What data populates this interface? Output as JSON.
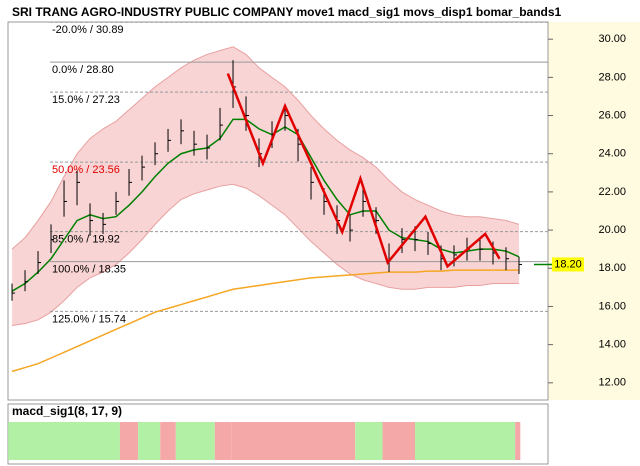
{
  "chart_data": {
    "type": "ohlc",
    "title": "SRI TRANG AGRO-INDUSTRY PUBLIC COMPANY move1 macd_sig1 movs_disp1 bomar_bands1",
    "xlim": [
      -0.31,
      41.23
    ],
    "ylim": [
      11.1,
      30.9
    ],
    "yticks": [
      {
        "value": 12,
        "label": "12.00"
      },
      {
        "value": 14,
        "label": "14.00"
      },
      {
        "value": 16,
        "label": "16.00"
      },
      {
        "value": 18,
        "label": "18.00"
      },
      {
        "value": 20,
        "label": "20.00"
      },
      {
        "value": 22,
        "label": "22.00"
      },
      {
        "value": 24,
        "label": "24.00"
      },
      {
        "value": 26,
        "label": "26.00"
      },
      {
        "value": 28,
        "label": "28.00"
      },
      {
        "value": 30,
        "label": "30.00"
      }
    ],
    "x": [
      0,
      1,
      2,
      3,
      4,
      5,
      6,
      7,
      8,
      9,
      10,
      11,
      12,
      13,
      14,
      15,
      16,
      17,
      18,
      19,
      20,
      21,
      22,
      23,
      24,
      25,
      26,
      27,
      28,
      29,
      30,
      31,
      32,
      33,
      34,
      35,
      36,
      37,
      38,
      39
    ],
    "high": [
      17.2,
      17.9,
      18.9,
      20.3,
      22.6,
      23.1,
      21.4,
      20.9,
      22.0,
      23.2,
      23.9,
      24.6,
      25.3,
      25.8,
      25.2,
      25.0,
      26.4,
      28.9,
      27.0,
      24.8,
      25.7,
      26.6,
      25.3,
      23.3,
      22.2,
      21.3,
      20.8,
      22.3,
      21.2,
      19.3,
      20.1,
      20.2,
      19.9,
      19.2,
      19.2,
      19.6,
      19.6,
      19.4,
      19.1,
      18.6
    ],
    "low": [
      16.3,
      16.8,
      17.7,
      18.8,
      20.7,
      21.3,
      19.7,
      19.8,
      20.8,
      21.8,
      22.6,
      23.4,
      24.1,
      24.5,
      23.9,
      23.7,
      24.7,
      26.4,
      25.2,
      23.3,
      24.3,
      25.2,
      23.6,
      21.6,
      20.8,
      19.8,
      19.4,
      20.7,
      19.8,
      17.8,
      18.8,
      18.9,
      18.7,
      17.9,
      18.1,
      18.4,
      18.4,
      18.2,
      17.9,
      17.7
    ],
    "close": [
      16.7,
      17.3,
      18.3,
      19.5,
      21.5,
      22.5,
      20.5,
      20.3,
      21.5,
      22.5,
      23.3,
      24.0,
      24.7,
      25.2,
      24.5,
      24.3,
      25.5,
      27.5,
      26.0,
      24.0,
      25.0,
      26.0,
      24.5,
      22.5,
      21.5,
      20.5,
      20.0,
      21.5,
      20.5,
      18.5,
      19.5,
      19.5,
      19.3,
      18.5,
      18.7,
      19.0,
      19.0,
      18.8,
      18.5,
      18.2
    ],
    "bands": {
      "upper": [
        19.0,
        19.6,
        20.5,
        21.5,
        22.8,
        24.0,
        24.8,
        25.3,
        25.7,
        26.3,
        26.9,
        27.5,
        28.0,
        28.5,
        28.9,
        29.2,
        29.4,
        29.6,
        29.2,
        28.5,
        28.0,
        27.5,
        26.8,
        26.0,
        25.3,
        24.7,
        24.2,
        23.8,
        23.3,
        22.6,
        22.0,
        21.6,
        21.3,
        21.0,
        20.8,
        20.7,
        20.7,
        20.6,
        20.5,
        20.3
      ],
      "lower": [
        15.0,
        15.1,
        15.3,
        15.7,
        16.3,
        17.0,
        17.5,
        17.8,
        18.2,
        18.8,
        19.5,
        20.3,
        21.0,
        21.6,
        21.9,
        22.1,
        22.3,
        22.4,
        22.2,
        21.8,
        21.3,
        20.8,
        20.1,
        19.4,
        18.8,
        18.2,
        17.7,
        17.4,
        17.2,
        17.0,
        16.9,
        16.9,
        17.0,
        17.0,
        17.0,
        17.1,
        17.1,
        17.2,
        17.2,
        17.2
      ],
      "color": "#f9d4d4"
    },
    "series": [
      {
        "color": "#008000",
        "values": [
          16.8,
          17.2,
          17.8,
          18.5,
          19.5,
          20.5,
          20.8,
          20.6,
          20.7,
          21.3,
          22.0,
          22.8,
          23.5,
          24.0,
          24.2,
          24.3,
          24.8,
          25.8,
          25.8,
          25.3,
          25.0,
          25.4,
          25.0,
          23.8,
          22.6,
          21.6,
          20.8,
          21.0,
          21.0,
          20.0,
          19.6,
          19.5,
          19.4,
          19.0,
          18.8,
          18.9,
          19.0,
          19.0,
          18.9,
          18.6
        ]
      },
      {
        "color": "#f5a623",
        "values": [
          12.6,
          12.8,
          13.0,
          13.3,
          13.6,
          13.9,
          14.2,
          14.5,
          14.8,
          15.1,
          15.4,
          15.7,
          15.9,
          16.1,
          16.3,
          16.5,
          16.7,
          16.9,
          17.0,
          17.1,
          17.2,
          17.3,
          17.4,
          17.5,
          17.55,
          17.6,
          17.65,
          17.7,
          17.75,
          17.8,
          17.8,
          17.8,
          17.85,
          17.85,
          17.9,
          17.9,
          17.9,
          17.9,
          17.9,
          17.9
        ]
      }
    ],
    "zigzag": {
      "color": "#e00000",
      "x": [
        16.6,
        19.3,
        21.0,
        25.4,
        26.8,
        28.9,
        31.8,
        33.5,
        36.4,
        37.5
      ],
      "values": [
        28.2,
        23.5,
        26.5,
        19.9,
        22.7,
        18.3,
        20.7,
        18.1,
        19.8,
        18.5
      ]
    },
    "levels": [
      {
        "value": 30.89,
        "label": "-20.0% / 30.89",
        "color": "#000000"
      },
      {
        "value": 28.8,
        "label": "0.0% / 28.80",
        "color": "#000000"
      },
      {
        "value": 27.23,
        "label": "15.0% / 27.23",
        "color": "#000000"
      },
      {
        "value": 23.56,
        "label": "50.0% / 23.56",
        "color": "#e00000"
      },
      {
        "value": 19.92,
        "label": "85.0% / 19.92",
        "color": "#000000"
      },
      {
        "value": 18.35,
        "label": "100.0% / 18.35",
        "color": "#000000"
      },
      {
        "value": 15.74,
        "label": "125.0% / 15.74",
        "color": "#000000"
      }
    ],
    "last_price": {
      "value": 18.2,
      "label": "18.20"
    },
    "macd": {
      "title": "macd_sig1(8, 17, 9)",
      "segments": [
        {
          "x": [
            -0.3,
            8.3
          ],
          "color": "#b2f0a6"
        },
        {
          "x": [
            8.3,
            9.7
          ],
          "color": "#f4a8a8"
        },
        {
          "x": [
            9.7,
            11.4
          ],
          "color": "#b2f0a6"
        },
        {
          "x": [
            11.4,
            12.6
          ],
          "color": "#f4a8a8"
        },
        {
          "x": [
            12.6,
            15.6
          ],
          "color": "#b2f0a6"
        },
        {
          "x": [
            15.6,
            16.9
          ],
          "color": "#f4a8a8"
        },
        {
          "x": [
            16.9,
            26.4
          ],
          "color": "#f4a8a8"
        },
        {
          "x": [
            26.4,
            28.5
          ],
          "color": "#b2f0a6"
        },
        {
          "x": [
            28.5,
            31.0
          ],
          "color": "#f4a8a8"
        },
        {
          "x": [
            31.0,
            38.7
          ],
          "color": "#b2f0a6"
        },
        {
          "x": [
            38.7,
            39.1
          ],
          "color": "#f4a8a8"
        }
      ]
    }
  }
}
